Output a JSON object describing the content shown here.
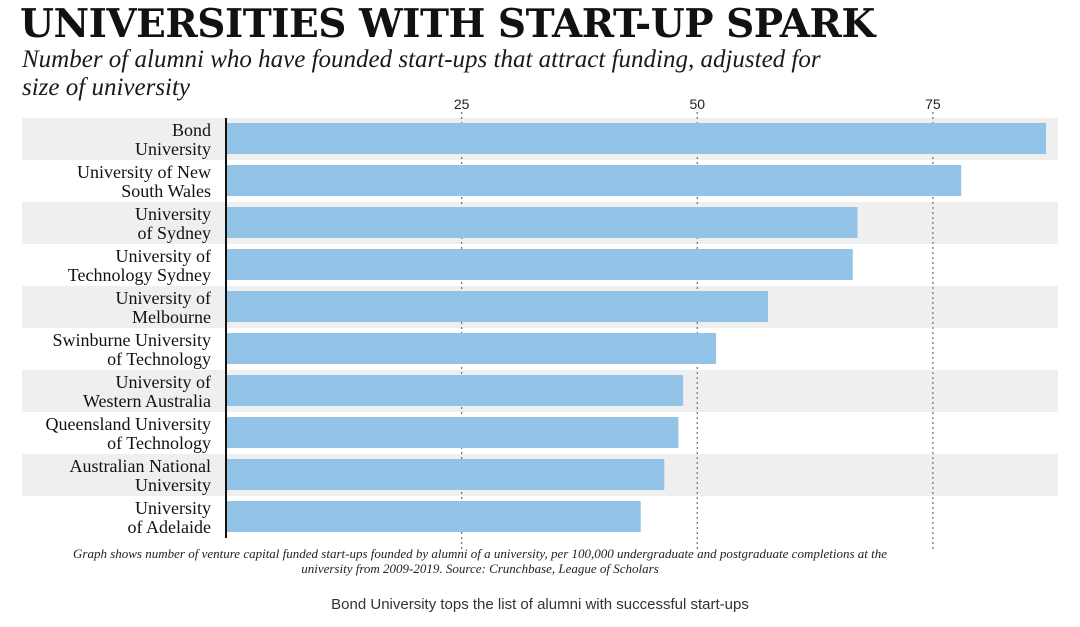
{
  "caption": "Bond University tops the list of alumni with successful start-ups",
  "chart_data": {
    "type": "bar",
    "orientation": "horizontal",
    "title": "UNIVERSITIES WITH START-UP SPARK",
    "subtitle": "Number of alumni who have founded start-ups that attract funding, adjusted for size of university",
    "footnote": "Graph shows number of venture capital funded start-ups founded by alumni of a university, per 100,000 undergraduate and postgraduate completions at the university from 2009-2019. Source: Crunchbase, League of Scholars",
    "categories": [
      [
        "Bond",
        "University"
      ],
      [
        "University of New",
        "South Wales"
      ],
      [
        "University",
        "of Sydney"
      ],
      [
        "University of",
        "Technology Sydney"
      ],
      [
        "University of",
        "Melbourne"
      ],
      [
        "Swinburne University",
        "of Technology"
      ],
      [
        "University of",
        "Western Australia"
      ],
      [
        "Queensland University",
        "of Technology"
      ],
      [
        "Australian National",
        "University"
      ],
      [
        "University",
        "of Adelaide"
      ]
    ],
    "values": [
      87,
      78,
      67,
      66.5,
      57.5,
      52,
      48.5,
      48,
      46.5,
      44
    ],
    "xlim": [
      0,
      87
    ],
    "xticks": [
      "25",
      "50",
      "75"
    ],
    "xtick_values": [
      25,
      50,
      75
    ],
    "x_axis_position": "top",
    "grid": "vertical dotted",
    "legend": "none",
    "bar_color": "#93c4e8",
    "band_color": "#efefef"
  }
}
